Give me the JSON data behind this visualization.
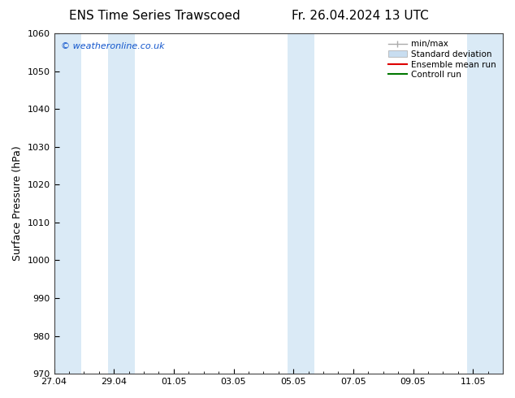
{
  "title_left": "ENS Time Series Trawscoed",
  "title_right": "Fr. 26.04.2024 13 UTC",
  "ylabel": "Surface Pressure (hPa)",
  "ylim": [
    970,
    1060
  ],
  "yticks": [
    970,
    980,
    990,
    1000,
    1010,
    1020,
    1030,
    1040,
    1050,
    1060
  ],
  "xlim_start": 0,
  "xlim_end": 15,
  "xtick_labels": [
    "27.04",
    "29.04",
    "01.05",
    "03.05",
    "05.05",
    "07.05",
    "09.05",
    "11.05"
  ],
  "xtick_positions": [
    0,
    2,
    4,
    6,
    8,
    10,
    12,
    14
  ],
  "background_color": "#ffffff",
  "plot_bg_color": "#ffffff",
  "shaded_bands": [
    {
      "x_start": 0.0,
      "x_end": 0.9,
      "color": "#daeaf6"
    },
    {
      "x_start": 1.8,
      "x_end": 2.7,
      "color": "#daeaf6"
    },
    {
      "x_start": 7.8,
      "x_end": 8.7,
      "color": "#daeaf6"
    },
    {
      "x_start": 13.8,
      "x_end": 15.0,
      "color": "#daeaf6"
    }
  ],
  "watermark_text": "© weatheronline.co.uk",
  "watermark_color": "#1155cc",
  "legend_labels": [
    "min/max",
    "Standard deviation",
    "Ensemble mean run",
    "Controll run"
  ],
  "minmax_color": "#aaaaaa",
  "std_facecolor": "#c8ddf0",
  "std_edgecolor": "#aaaaaa",
  "ens_color": "#dd0000",
  "ctrl_color": "#007700",
  "title_fontsize": 11,
  "axis_label_fontsize": 9,
  "tick_fontsize": 8,
  "legend_fontsize": 7.5
}
